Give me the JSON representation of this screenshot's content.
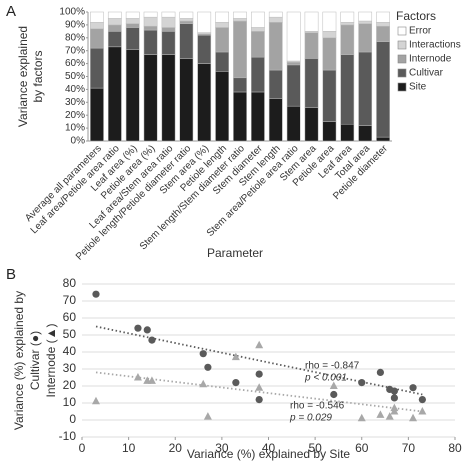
{
  "chart_data": [
    {
      "type": "stacked_bar",
      "panel": "A",
      "ylabel": [
        "Variance explained",
        "by factors"
      ],
      "xlabel": "Parameter",
      "legend_title": "Factors",
      "categories": [
        "Average all parameters",
        "Leaf area/Petiole area ratio",
        "Leaf area (%)",
        "Petiole area (%)",
        "Leaf area/Stem area ratio",
        "Petiole length/Petiole diameter ratio",
        "Stem area (%)",
        "Petiole length",
        "Stem length/Stem diameter ratio",
        "Stem diameter",
        "Stem length",
        "Stem area/Petiole area ratio",
        "Stem area",
        "Petiole area",
        "Leaf area",
        "Total area",
        "Petiole diameter"
      ],
      "series": [
        {
          "name": "Site",
          "color": "#1c1c1c",
          "values": [
            41,
            73,
            71,
            67,
            67,
            64,
            60,
            54,
            38,
            38,
            33,
            27,
            26,
            15,
            13,
            12,
            3
          ]
        },
        {
          "name": "Cultivar",
          "color": "#5a5a5a",
          "values": [
            31,
            12,
            17,
            19,
            18,
            27,
            22,
            15,
            11,
            27,
            22,
            32,
            38,
            40,
            54,
            57,
            74
          ]
        },
        {
          "name": "Internode",
          "color": "#a3a3a3",
          "values": [
            15,
            5,
            3,
            3,
            3,
            2,
            1,
            19,
            44,
            20,
            37,
            2,
            20,
            25,
            23,
            22,
            12
          ]
        },
        {
          "name": "Interactions",
          "color": "#d4d4d4",
          "values": [
            5,
            5,
            4,
            7,
            8,
            2,
            1,
            4,
            2,
            3,
            4,
            1,
            1,
            5,
            2,
            2,
            3
          ]
        },
        {
          "name": "Error",
          "color": "#ffffff",
          "values": [
            8,
            5,
            5,
            4,
            4,
            5,
            16,
            8,
            5,
            12,
            4,
            38,
            15,
            15,
            8,
            7,
            8
          ]
        }
      ],
      "legend_order": [
        4,
        3,
        2,
        1,
        0
      ],
      "ylim": [
        0,
        100
      ],
      "yticks": [
        {
          "value": 0,
          "label": "0%"
        },
        {
          "value": 10,
          "label": "10%"
        },
        {
          "value": 20,
          "label": "20%"
        },
        {
          "value": 30,
          "label": "30%"
        },
        {
          "value": 40,
          "label": "40%"
        },
        {
          "value": 50,
          "label": "50%"
        },
        {
          "value": 60,
          "label": "60%"
        },
        {
          "value": 70,
          "label": "70%"
        },
        {
          "value": 80,
          "label": "80%"
        },
        {
          "value": 90,
          "label": "90%"
        },
        {
          "value": 100,
          "label": "100%"
        }
      ],
      "grid": false
    },
    {
      "type": "scatter",
      "panel": "B",
      "xlabel": "Variance (%) explained by Site",
      "ylabel": [
        "Variance (%) explained by",
        "Cultivar (●)",
        "Internode (▲)"
      ],
      "series": [
        {
          "name": "Cultivar",
          "color": "#5a5a5a",
          "marker": "circle",
          "x": [
            3,
            12,
            14,
            15,
            26,
            27,
            33,
            38,
            38,
            54,
            60,
            64,
            66,
            67,
            67,
            71,
            73
          ],
          "values": [
            74,
            54,
            53,
            47,
            39,
            31,
            22,
            27,
            12,
            15,
            22,
            28,
            18,
            17,
            13,
            19,
            12
          ],
          "trendline": {
            "x": [
              3,
              73
            ],
            "y": [
              55,
              15
            ]
          },
          "annotation": [
            "rho = -0.847",
            "p < 0.001"
          ]
        },
        {
          "name": "Internode",
          "color": "#a8a8a8",
          "marker": "triangle",
          "x": [
            3,
            12,
            14,
            15,
            26,
            27,
            33,
            38,
            38,
            54,
            60,
            64,
            66,
            67,
            67,
            71,
            73
          ],
          "values": [
            11,
            25,
            23,
            23,
            21,
            2,
            37,
            44,
            19,
            20,
            1,
            3,
            2,
            7,
            5,
            1,
            5
          ],
          "trendline": {
            "x": [
              3,
              73
            ],
            "y": [
              28,
              5
            ]
          },
          "annotation": [
            "rho = -0.546",
            "p = 0.029"
          ]
        }
      ],
      "xlim": [
        0,
        80
      ],
      "xticks": [
        0,
        10,
        20,
        30,
        40,
        50,
        60,
        70,
        80
      ],
      "ylim": [
        -10,
        80
      ],
      "yticks": [
        -10,
        0,
        10,
        20,
        30,
        40,
        50,
        60,
        70,
        80
      ],
      "grid": true
    }
  ]
}
